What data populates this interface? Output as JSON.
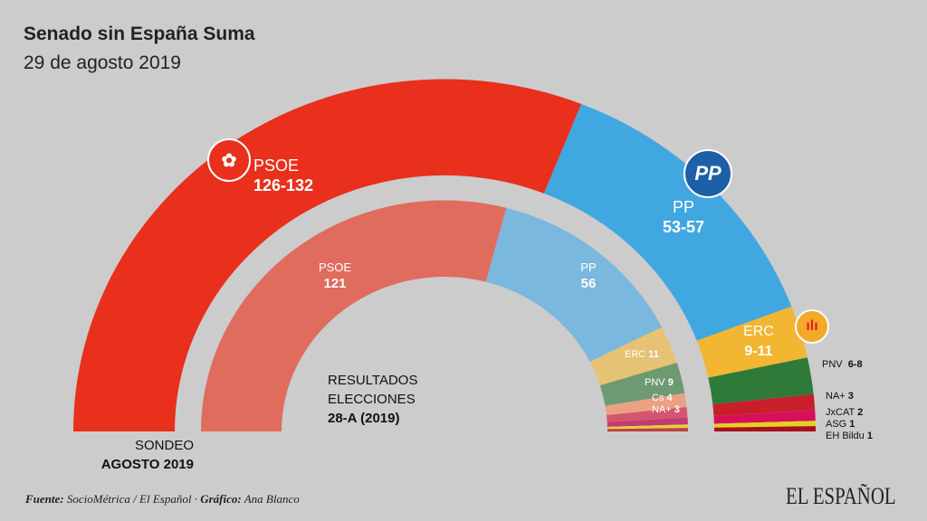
{
  "chart_data": {
    "type": "hemicycle",
    "title": "Senado sin España Suma",
    "subtitle": "29 de agosto 2019",
    "rings": [
      {
        "name": "SONDEO",
        "name2": "AGOSTO 2019",
        "parties": [
          {
            "party": "PSOE",
            "label": "126-132",
            "low": 126,
            "high": 132,
            "color": "#e8301c"
          },
          {
            "party": "PP",
            "label": "53-57",
            "low": 53,
            "high": 57,
            "color": "#41a7e0"
          },
          {
            "party": "ERC",
            "label": "9-11",
            "low": 9,
            "high": 11,
            "color": "#f2b632"
          },
          {
            "party": "PNV",
            "label": "6-8",
            "low": 6,
            "high": 8,
            "color": "#2f7a38"
          },
          {
            "party": "NA+",
            "label": "3",
            "low": 3,
            "high": 3,
            "color": "#c81f2a"
          },
          {
            "party": "JxCAT",
            "label": "2",
            "low": 2,
            "high": 2,
            "color": "#d80f5a"
          },
          {
            "party": "ASG",
            "label": "1",
            "low": 1,
            "high": 1,
            "color": "#e3d21f"
          },
          {
            "party": "EH Bildu",
            "label": "1",
            "low": 1,
            "high": 1,
            "color": "#a8101e"
          }
        ]
      },
      {
        "name": "RESULTADOS",
        "name2": "ELECCIONES",
        "name3": "28-A (2019)",
        "parties": [
          {
            "party": "PSOE",
            "label": "121",
            "value": 121,
            "color": "#e06c5e"
          },
          {
            "party": "PP",
            "label": "56",
            "value": 56,
            "color": "#7ab8de"
          },
          {
            "party": "ERC",
            "label": "11",
            "value": 11,
            "color": "#e6c274"
          },
          {
            "party": "PNV",
            "label": "9",
            "value": 9,
            "color": "#6e9a72"
          },
          {
            "party": "Cs",
            "label": "4",
            "value": 4,
            "color": "#eca083"
          },
          {
            "party": "NA+",
            "label": "3",
            "value": 3,
            "color": "#d4566e"
          },
          {
            "party": "JxCAT",
            "value": 2,
            "color": "#c43a74"
          },
          {
            "party": "ASG",
            "value": 1,
            "color": "#dcd23c"
          },
          {
            "party": "EH Bildu",
            "value": 1,
            "color": "#c04040"
          }
        ]
      }
    ]
  },
  "logos": {
    "psoe": "psoe-rose-logo",
    "pp": "PP",
    "erc": "erc-logo"
  },
  "footer": {
    "source_label": "Fuente:",
    "source": " SocioMétrica / El Español · ",
    "graphic_label": "Gráfico:",
    "graphic": " Ana Blanco"
  },
  "brand": "EL ESPAÑOL"
}
